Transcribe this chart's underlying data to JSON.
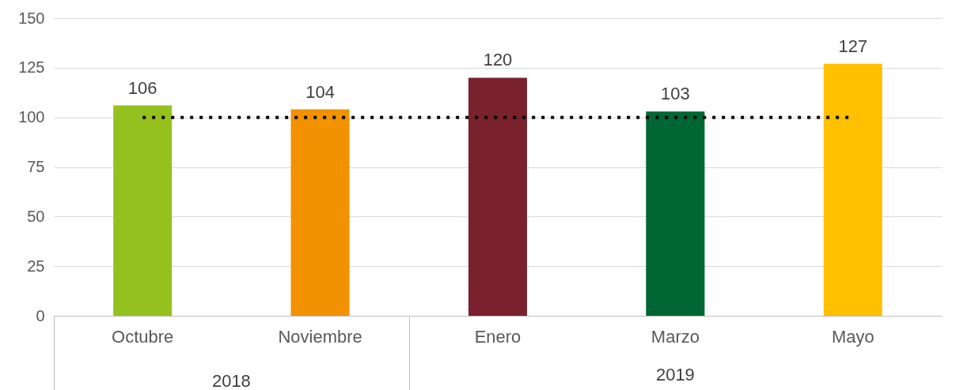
{
  "chart_data": {
    "type": "bar",
    "categories": [
      "Octubre",
      "Noviembre",
      "Enero",
      "Marzo",
      "Mayo"
    ],
    "values": [
      106,
      104,
      120,
      103,
      127
    ],
    "colors": [
      "#95c11f",
      "#f39200",
      "#7a212e",
      "#006633",
      "#ffc000"
    ],
    "ylim": [
      0,
      150
    ],
    "yticks": [
      0,
      25,
      50,
      75,
      100,
      125,
      150
    ],
    "grid": "y",
    "data_labels": true,
    "legend": false,
    "ref_lines": [
      {
        "axis": "y",
        "value": 100,
        "color": "#000000",
        "line_style": "dotted"
      }
    ],
    "annotations": [
      "2018",
      "2019"
    ]
  }
}
